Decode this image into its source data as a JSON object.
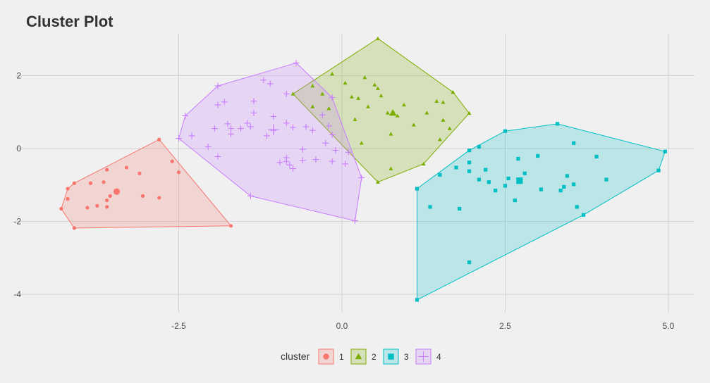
{
  "chart_data": {
    "type": "scatter",
    "title": "Cluster Plot",
    "xlabel": "",
    "ylabel": "",
    "xlim": [
      -5.0,
      5.4
    ],
    "ylim": [
      -4.5,
      3.15
    ],
    "x_ticks": [
      -2.5,
      0.0,
      2.5,
      5.0
    ],
    "y_ticks": [
      -4,
      -2,
      0,
      2
    ],
    "x_tick_labels": [
      "-2.5",
      "0.0",
      "2.5",
      "5.0"
    ],
    "y_tick_labels": [
      "-4",
      "-2",
      "0",
      "2"
    ],
    "grid": true,
    "legend_position": "bottom",
    "legend_title": "cluster",
    "series": [
      {
        "name": "1",
        "marker": "circle",
        "color": "#F8766D",
        "centroid": [
          -3.45,
          -1.18
        ],
        "hull": [
          [
            -2.8,
            0.25
          ],
          [
            -1.7,
            -2.12
          ],
          [
            -4.1,
            -2.18
          ],
          [
            -4.3,
            -1.65
          ],
          [
            -4.2,
            -1.1
          ],
          [
            -4.1,
            -0.95
          ]
        ],
        "points": [
          [
            -2.8,
            0.25
          ],
          [
            -2.6,
            -0.35
          ],
          [
            -2.5,
            -0.65
          ],
          [
            -3.3,
            -0.52
          ],
          [
            -3.1,
            -0.68
          ],
          [
            -3.05,
            -1.3
          ],
          [
            -2.8,
            -1.35
          ],
          [
            -3.6,
            -0.58
          ],
          [
            -3.65,
            -0.92
          ],
          [
            -3.85,
            -0.95
          ],
          [
            -4.1,
            -0.95
          ],
          [
            -4.2,
            -1.1
          ],
          [
            -4.2,
            -1.38
          ],
          [
            -3.6,
            -1.42
          ],
          [
            -3.55,
            -1.3
          ],
          [
            -3.6,
            -1.6
          ],
          [
            -3.75,
            -1.57
          ],
          [
            -3.9,
            -1.62
          ],
          [
            -4.3,
            -1.65
          ],
          [
            -4.1,
            -2.18
          ],
          [
            -1.7,
            -2.12
          ]
        ]
      },
      {
        "name": "2",
        "marker": "triangle",
        "color": "#7CAE00",
        "centroid": [
          0.78,
          0.98
        ],
        "hull": [
          [
            0.55,
            3.02
          ],
          [
            1.7,
            1.55
          ],
          [
            1.95,
            0.97
          ],
          [
            1.25,
            -0.42
          ],
          [
            0.55,
            -0.92
          ],
          [
            -0.75,
            1.5
          ]
        ],
        "points": [
          [
            0.55,
            3.02
          ],
          [
            -0.15,
            2.05
          ],
          [
            0.35,
            1.95
          ],
          [
            0.05,
            1.8
          ],
          [
            0.5,
            1.75
          ],
          [
            0.55,
            1.65
          ],
          [
            -0.45,
            1.72
          ],
          [
            -0.3,
            1.5
          ],
          [
            0.6,
            1.45
          ],
          [
            0.15,
            1.42
          ],
          [
            0.25,
            1.38
          ],
          [
            1.7,
            1.55
          ],
          [
            1.45,
            1.3
          ],
          [
            1.55,
            1.27
          ],
          [
            0.95,
            1.2
          ],
          [
            0.4,
            1.15
          ],
          [
            -0.45,
            1.15
          ],
          [
            -0.2,
            1.1
          ],
          [
            -0.75,
            1.5
          ],
          [
            0.7,
            0.98
          ],
          [
            0.85,
            0.9
          ],
          [
            1.3,
            0.98
          ],
          [
            1.95,
            0.97
          ],
          [
            1.55,
            0.78
          ],
          [
            0.2,
            0.8
          ],
          [
            1.1,
            0.65
          ],
          [
            1.65,
            0.55
          ],
          [
            0.75,
            0.4
          ],
          [
            1.5,
            0.25
          ],
          [
            0.3,
            0.15
          ],
          [
            1.25,
            -0.42
          ],
          [
            0.75,
            -0.55
          ],
          [
            0.55,
            -0.92
          ]
        ]
      },
      {
        "name": "3",
        "marker": "square",
        "color": "#00BFC4",
        "centroid": [
          2.72,
          -0.88
        ],
        "hull": [
          [
            3.3,
            0.68
          ],
          [
            4.95,
            -0.08
          ],
          [
            4.85,
            -0.6
          ],
          [
            3.7,
            -1.82
          ],
          [
            1.15,
            -4.15
          ],
          [
            1.15,
            -1.1
          ],
          [
            1.95,
            -0.05
          ],
          [
            2.5,
            0.48
          ]
        ],
        "points": [
          [
            3.3,
            0.68
          ],
          [
            2.5,
            0.48
          ],
          [
            3.55,
            0.15
          ],
          [
            2.1,
            0.05
          ],
          [
            1.95,
            -0.05
          ],
          [
            3.0,
            -0.2
          ],
          [
            2.7,
            -0.28
          ],
          [
            3.9,
            -0.22
          ],
          [
            1.95,
            -0.38
          ],
          [
            1.75,
            -0.52
          ],
          [
            2.2,
            -0.58
          ],
          [
            1.95,
            -0.62
          ],
          [
            2.8,
            -0.68
          ],
          [
            1.5,
            -0.72
          ],
          [
            3.45,
            -0.75
          ],
          [
            4.05,
            -0.85
          ],
          [
            2.55,
            -0.82
          ],
          [
            2.1,
            -0.85
          ],
          [
            2.25,
            -0.92
          ],
          [
            3.55,
            -0.98
          ],
          [
            3.4,
            -1.05
          ],
          [
            2.5,
            -1.02
          ],
          [
            2.35,
            -1.15
          ],
          [
            3.35,
            -1.15
          ],
          [
            3.05,
            -1.12
          ],
          [
            4.95,
            -0.08
          ],
          [
            4.85,
            -0.6
          ],
          [
            1.15,
            -1.1
          ],
          [
            2.65,
            -1.42
          ],
          [
            1.35,
            -1.6
          ],
          [
            1.8,
            -1.65
          ],
          [
            3.6,
            -1.6
          ],
          [
            3.7,
            -1.82
          ],
          [
            1.95,
            -3.12
          ],
          [
            1.15,
            -4.15
          ]
        ]
      },
      {
        "name": "4",
        "marker": "cross",
        "color": "#C77CFF",
        "centroid": [
          -1.05,
          0.52
        ],
        "hull": [
          [
            -0.7,
            2.35
          ],
          [
            -0.15,
            1.4
          ],
          [
            0.3,
            -0.8
          ],
          [
            0.2,
            -1.98
          ],
          [
            -1.4,
            -1.3
          ],
          [
            -2.5,
            0.28
          ],
          [
            -2.4,
            0.9
          ],
          [
            -1.9,
            1.72
          ]
        ],
        "points": [
          [
            -0.7,
            2.35
          ],
          [
            -1.9,
            1.72
          ],
          [
            -1.2,
            1.88
          ],
          [
            -1.1,
            1.78
          ],
          [
            -0.85,
            1.5
          ],
          [
            -1.8,
            1.28
          ],
          [
            -1.9,
            1.2
          ],
          [
            -1.35,
            1.3
          ],
          [
            -0.15,
            1.4
          ],
          [
            -0.3,
            0.92
          ],
          [
            -1.35,
            0.98
          ],
          [
            -2.4,
            0.9
          ],
          [
            -1.05,
            0.88
          ],
          [
            -0.2,
            0.62
          ],
          [
            -0.85,
            0.7
          ],
          [
            -1.75,
            0.68
          ],
          [
            -1.7,
            0.55
          ],
          [
            -1.45,
            0.7
          ],
          [
            -1.4,
            0.6
          ],
          [
            -1.55,
            0.55
          ],
          [
            -0.55,
            0.6
          ],
          [
            -1.95,
            0.55
          ],
          [
            -0.75,
            0.58
          ],
          [
            -1.05,
            0.5
          ],
          [
            -1.15,
            0.35
          ],
          [
            -0.45,
            0.5
          ],
          [
            -0.15,
            0.38
          ],
          [
            -1.7,
            0.4
          ],
          [
            -2.3,
            0.35
          ],
          [
            -2.5,
            0.28
          ],
          [
            -0.25,
            0.15
          ],
          [
            -2.05,
            0.05
          ],
          [
            -0.6,
            -0.02
          ],
          [
            -0.1,
            -0.05
          ],
          [
            0.1,
            -0.1
          ],
          [
            -1.9,
            -0.22
          ],
          [
            -0.85,
            -0.25
          ],
          [
            -0.6,
            -0.32
          ],
          [
            -0.4,
            -0.3
          ],
          [
            -0.85,
            -0.35
          ],
          [
            -0.95,
            -0.38
          ],
          [
            -0.15,
            -0.35
          ],
          [
            0.05,
            -0.42
          ],
          [
            -0.8,
            -0.45
          ],
          [
            -0.75,
            -0.55
          ],
          [
            0.3,
            -0.8
          ],
          [
            -1.4,
            -1.3
          ],
          [
            0.2,
            -1.98
          ]
        ]
      }
    ]
  }
}
